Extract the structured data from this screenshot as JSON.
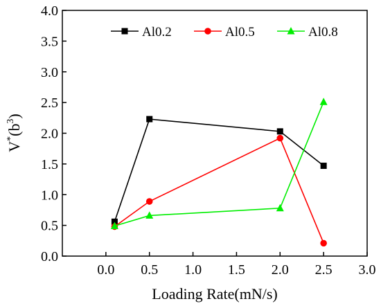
{
  "chart_data": {
    "type": "line",
    "title": "",
    "xlabel": "Loading Rate(mN/s)",
    "ylabel": "V*(b3)",
    "ylabel_parts": {
      "base": "V",
      "sup1": "*",
      "open": "(b",
      "sup2": "3",
      "close": ")"
    },
    "xlim": [
      -0.5,
      3.0
    ],
    "ylim": [
      0.0,
      4.0
    ],
    "x_ticks": [
      0.0,
      0.5,
      1.0,
      1.5,
      2.0,
      2.5,
      3.0
    ],
    "x_tick_labels": [
      "0.0",
      "0.5",
      "1.0",
      "1.5",
      "2.0",
      "2.5",
      "3.0"
    ],
    "y_ticks": [
      0.0,
      0.5,
      1.0,
      1.5,
      2.0,
      2.5,
      3.0,
      3.5,
      4.0
    ],
    "y_tick_labels": [
      "0.0",
      "0.5",
      "1.0",
      "1.5",
      "2.0",
      "2.5",
      "3.0",
      "3.5",
      "4.0"
    ],
    "grid": false,
    "legend_position": "top-right",
    "series": [
      {
        "name": "Al0.2",
        "color": "#000000",
        "marker": "square",
        "x": [
          0.1,
          0.5,
          2.0,
          2.5
        ],
        "y": [
          0.56,
          2.23,
          2.03,
          1.47
        ]
      },
      {
        "name": "Al0.5",
        "color": "#ff0000",
        "marker": "circle",
        "x": [
          0.1,
          0.5,
          2.0,
          2.5
        ],
        "y": [
          0.48,
          0.89,
          1.92,
          0.21
        ]
      },
      {
        "name": "Al0.8",
        "color": "#00ee00",
        "marker": "triangle",
        "x": [
          0.1,
          0.5,
          2.0,
          2.5
        ],
        "y": [
          0.49,
          0.66,
          0.78,
          2.51
        ]
      }
    ]
  }
}
